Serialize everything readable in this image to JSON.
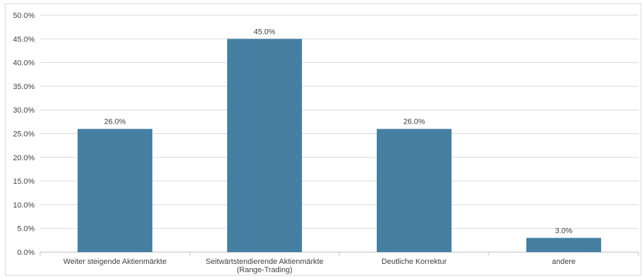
{
  "chart_data": {
    "type": "bar",
    "categories": [
      [
        "Weiter steigende Aktienmärkte"
      ],
      [
        "Seitwärtstendierende Aktienmärkte",
        "(Range-Trading)"
      ],
      [
        "Deutliche Korrektur"
      ],
      [
        "andere"
      ]
    ],
    "values": [
      26.0,
      45.0,
      26.0,
      3.0
    ],
    "data_labels": [
      "26.0%",
      "45.0%",
      "26.0%",
      "3.0%"
    ],
    "title": "",
    "xlabel": "",
    "ylabel": "",
    "ylim": [
      0,
      50
    ],
    "ytick_step": 5,
    "ytick_labels": [
      "0.0%",
      "5.0%",
      "10.0%",
      "15.0%",
      "20.0%",
      "25.0%",
      "30.0%",
      "35.0%",
      "40.0%",
      "45.0%",
      "50.0%"
    ],
    "grid": true,
    "legend": "none",
    "colors": {
      "bar": "#4580a3",
      "grid": "#d9d9d9",
      "axis": "#bfbfbf",
      "text": "#404040"
    }
  }
}
